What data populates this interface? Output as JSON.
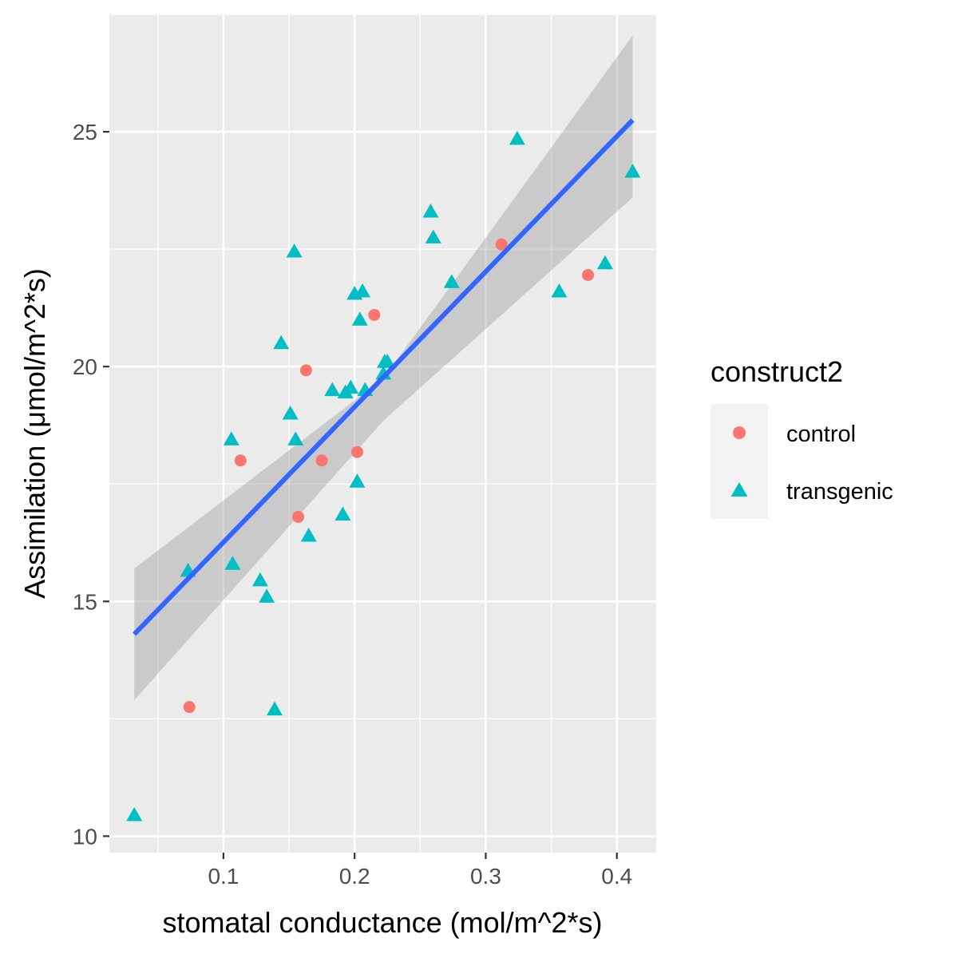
{
  "chart_data": {
    "type": "scatter",
    "xlabel": "stomatal conductance (mol/m^2*s)",
    "ylabel": "Assimilation (μmol/m^2*s)",
    "xlim": [
      0.013,
      0.43
    ],
    "ylim": [
      9.65,
      27.5
    ],
    "x_ticks": [
      0.1,
      0.2,
      0.3,
      0.4
    ],
    "x_tick_labels": [
      "0.1",
      "0.2",
      "0.3",
      "0.4"
    ],
    "y_ticks": [
      10,
      15,
      20,
      25
    ],
    "y_tick_labels": [
      "10",
      "15",
      "20",
      "25"
    ],
    "grid": true,
    "legend": {
      "title": "construct2",
      "position": "right",
      "entries": [
        {
          "label": "control",
          "shape": "circle",
          "color": "#F8766D"
        },
        {
          "label": "transgenic",
          "shape": "triangle",
          "color": "#00BFC4"
        }
      ]
    },
    "series": [
      {
        "name": "control",
        "shape": "circle",
        "color": "#F8766D",
        "points": [
          [
            0.074,
            12.75
          ],
          [
            0.113,
            18.0
          ],
          [
            0.157,
            16.8
          ],
          [
            0.163,
            19.92
          ],
          [
            0.175,
            18.0
          ],
          [
            0.202,
            18.18
          ],
          [
            0.215,
            21.1
          ],
          [
            0.312,
            22.6
          ],
          [
            0.378,
            21.95
          ]
        ]
      },
      {
        "name": "transgenic",
        "shape": "triangle",
        "color": "#00BFC4",
        "points": [
          [
            0.032,
            10.45
          ],
          [
            0.073,
            15.65
          ],
          [
            0.106,
            18.45
          ],
          [
            0.107,
            15.8
          ],
          [
            0.128,
            15.45
          ],
          [
            0.133,
            15.1
          ],
          [
            0.139,
            12.7
          ],
          [
            0.144,
            20.5
          ],
          [
            0.151,
            19.0
          ],
          [
            0.154,
            22.45
          ],
          [
            0.155,
            18.45
          ],
          [
            0.165,
            16.4
          ],
          [
            0.183,
            19.5
          ],
          [
            0.191,
            16.85
          ],
          [
            0.193,
            19.45
          ],
          [
            0.197,
            19.55
          ],
          [
            0.2,
            21.55
          ],
          [
            0.202,
            17.55
          ],
          [
            0.204,
            21.0
          ],
          [
            0.206,
            21.6
          ],
          [
            0.208,
            19.5
          ],
          [
            0.222,
            19.85
          ],
          [
            0.223,
            20.1
          ],
          [
            0.225,
            20.1
          ],
          [
            0.258,
            23.3
          ],
          [
            0.26,
            22.75
          ],
          [
            0.274,
            21.8
          ],
          [
            0.324,
            24.85
          ],
          [
            0.356,
            21.6
          ],
          [
            0.391,
            22.2
          ],
          [
            0.412,
            24.15
          ]
        ]
      }
    ],
    "fit": {
      "method": "linear",
      "color": "#3366FF",
      "x": [
        0.032,
        0.412
      ],
      "y": [
        14.3,
        25.25
      ],
      "confidence_band": {
        "x": [
          0.032,
          0.222,
          0.412
        ],
        "lower": [
          12.9,
          18.85,
          23.6
        ],
        "upper": [
          15.7,
          19.75,
          27.05
        ]
      }
    }
  }
}
